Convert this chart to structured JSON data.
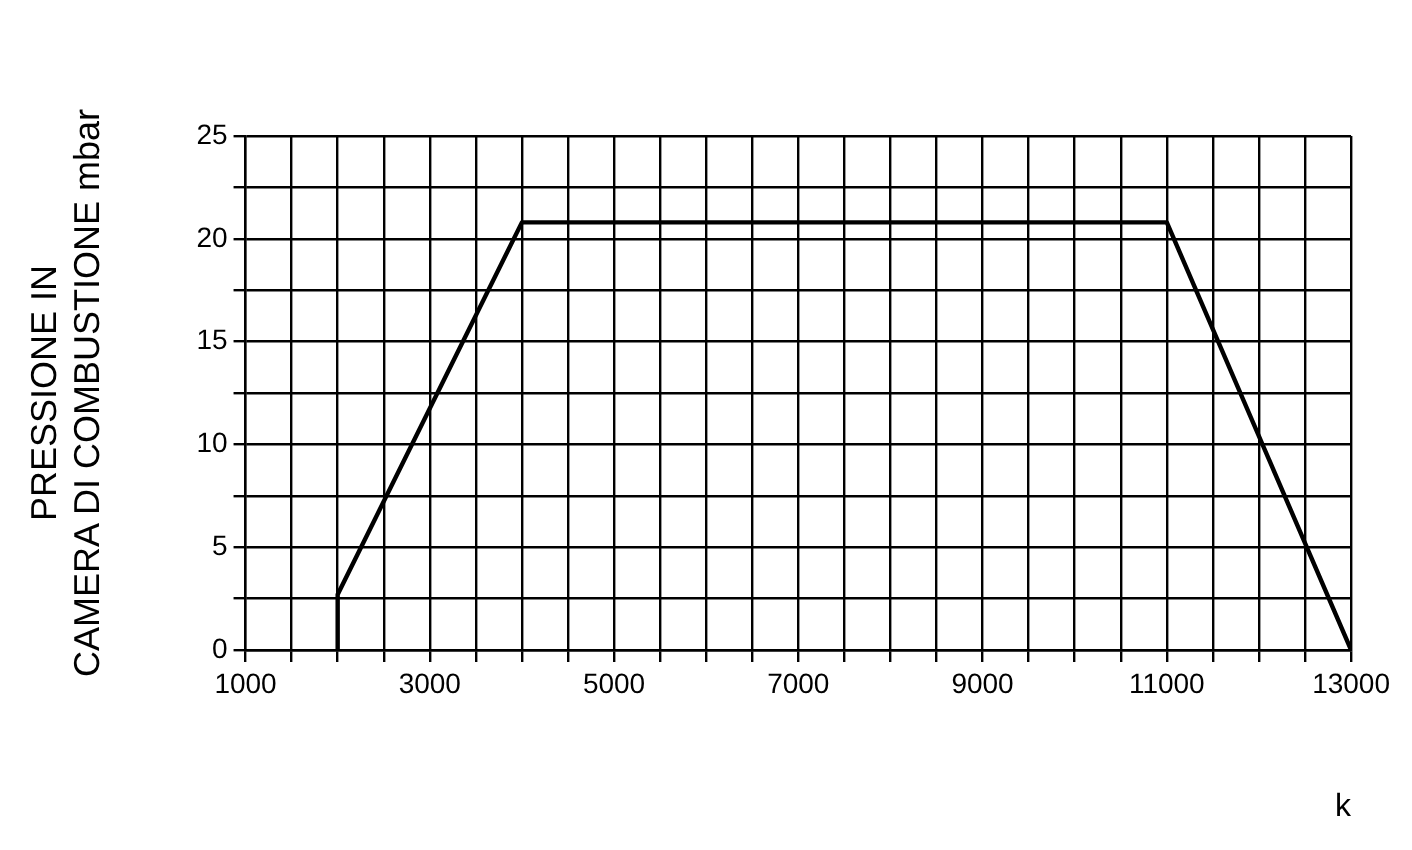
{
  "chart_data": {
    "type": "line",
    "xlabel": "k",
    "ylabel": "PRESSIONE IN\nCAMERA DI COMBUSTIONE mbar",
    "x": [
      2000,
      2000,
      4000,
      11000,
      13000
    ],
    "series": [
      {
        "color": "#000000",
        "values": [
          0,
          2.7,
          20.8,
          20.8,
          0
        ]
      }
    ],
    "xlim": [
      1000,
      13000
    ],
    "xticks": [
      1000,
      {
        "value": 1500,
        "label": null
      },
      {
        "value": 2000,
        "label": null
      },
      {
        "value": 2500,
        "label": null
      },
      3000,
      {
        "value": 3500,
        "label": null
      },
      {
        "value": 4000,
        "label": null
      },
      {
        "value": 4500,
        "label": null
      },
      5000,
      {
        "value": 5500,
        "label": null
      },
      {
        "value": 6000,
        "label": null
      },
      {
        "value": 6500,
        "label": null
      },
      7000,
      {
        "value": 7500,
        "label": null
      },
      {
        "value": 8000,
        "label": null
      },
      {
        "value": 8500,
        "label": null
      },
      9000,
      {
        "value": 9500,
        "label": null
      },
      {
        "value": 10000,
        "label": null
      },
      {
        "value": 10500,
        "label": null
      },
      11000,
      {
        "value": 11500,
        "label": null
      },
      {
        "value": 12000,
        "label": null
      },
      {
        "value": 12500,
        "label": null
      },
      13000
    ],
    "ylim": [
      0,
      25
    ],
    "yticks": [
      0,
      {
        "value": 2.5,
        "label": null
      },
      5,
      {
        "value": 7.5,
        "label": null
      },
      10,
      {
        "value": 12.5,
        "label": null
      },
      15,
      {
        "value": 17.5,
        "label": null
      },
      20,
      {
        "value": 22.5,
        "label": null
      },
      25
    ],
    "grid": true,
    "legend": false,
    "marker": "none",
    "line_style": "solid"
  }
}
